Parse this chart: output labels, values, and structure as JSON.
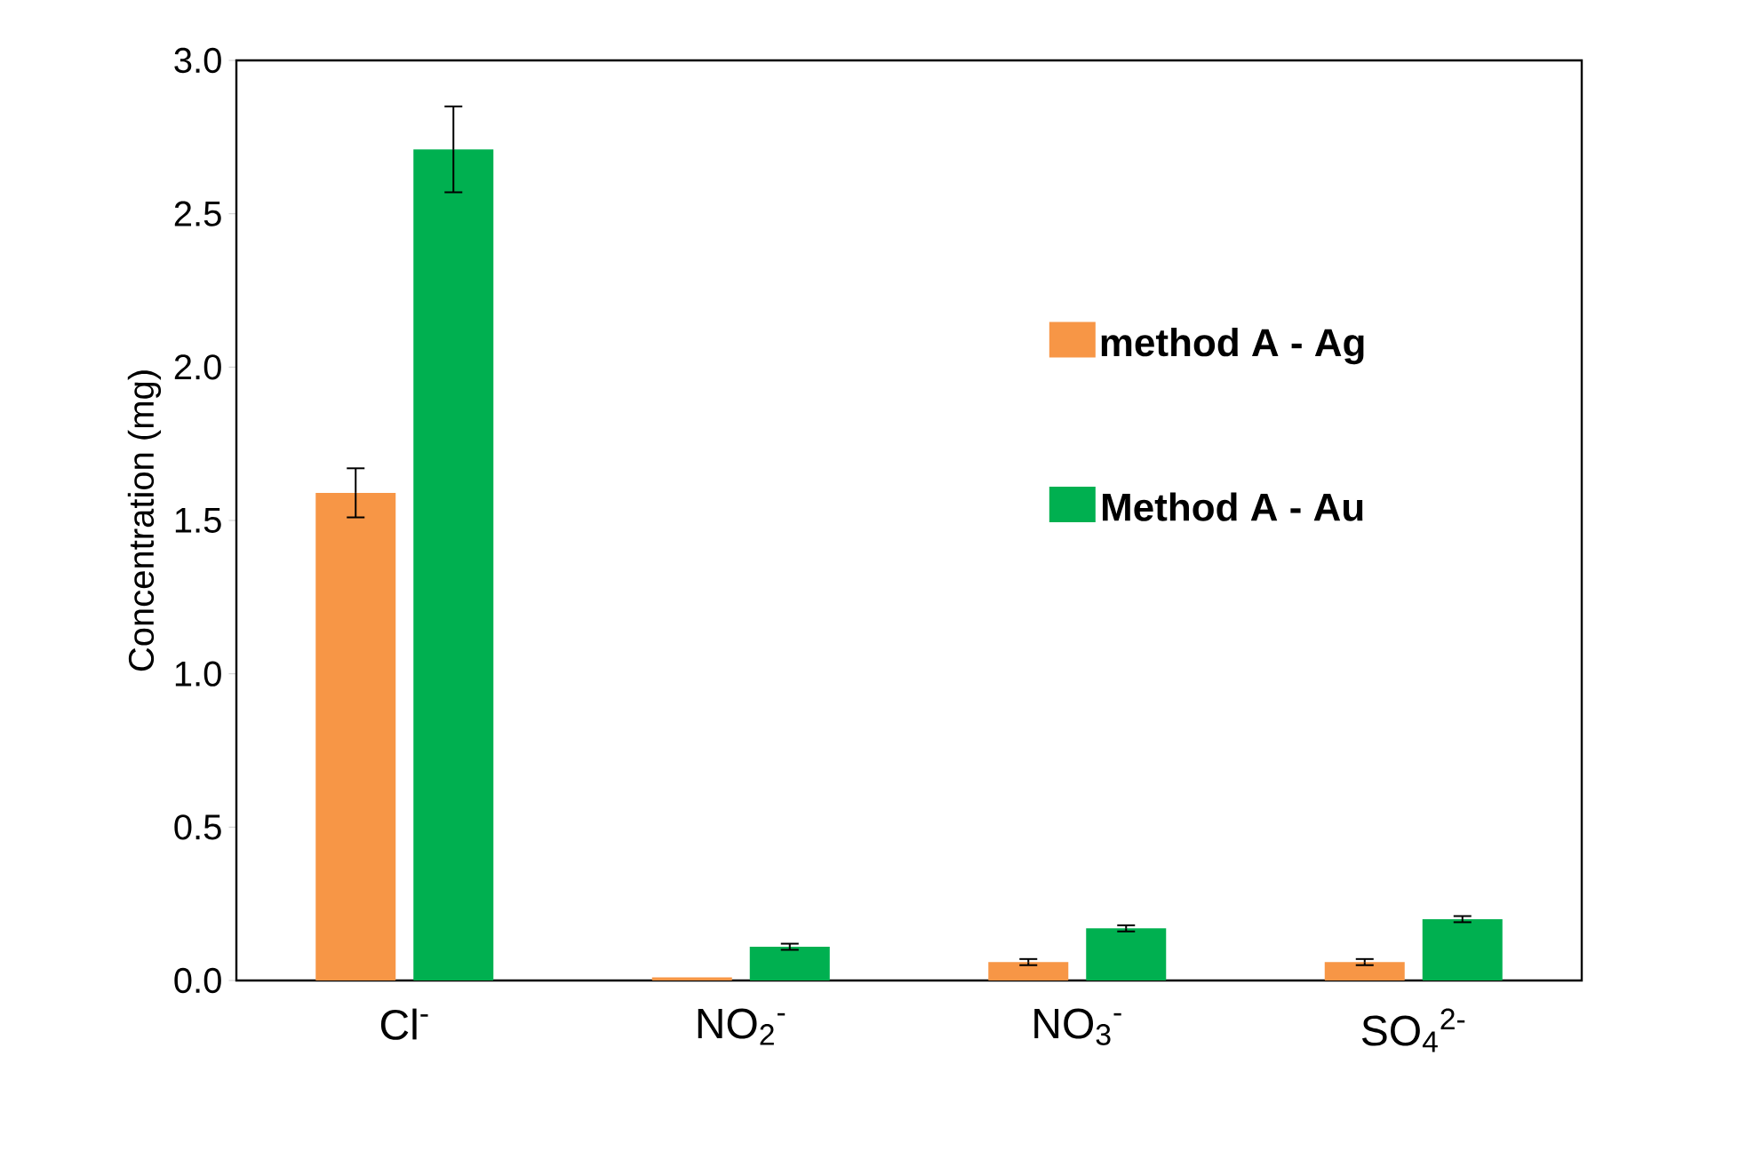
{
  "chart_data": {
    "type": "bar",
    "ylabel": "Concentration (mg)",
    "categories": [
      "Cl$^{-}$",
      "NO$_{2}$$^{-}$",
      "NO$_{3}$$^{-}$",
      "SO$_{4}$$^{2-}$"
    ],
    "series": [
      {
        "name": "method A - Ag",
        "color": "#f79646",
        "values": [
          1.59,
          0.01,
          0.06,
          0.06
        ],
        "errors": [
          0.08,
          null,
          0.01,
          0.01
        ]
      },
      {
        "name": "Method A - Au",
        "color": "#00b050",
        "values": [
          2.71,
          0.11,
          0.17,
          0.2
        ],
        "errors": [
          0.14,
          0.01,
          0.01,
          0.01
        ]
      }
    ],
    "ylim": [
      0,
      3.0
    ],
    "yticks": [
      {
        "value": 0,
        "label": "0.0"
      },
      {
        "value": 0.5,
        "label": "0.5"
      },
      {
        "value": 1.0,
        "label": "1.0"
      },
      {
        "value": 1.5,
        "label": "1.5"
      },
      {
        "value": 2.0,
        "label": "2.0"
      },
      {
        "value": 2.5,
        "label": "2.5"
      },
      {
        "value": 3.0,
        "label": "3.0"
      }
    ],
    "legend": "right"
  }
}
